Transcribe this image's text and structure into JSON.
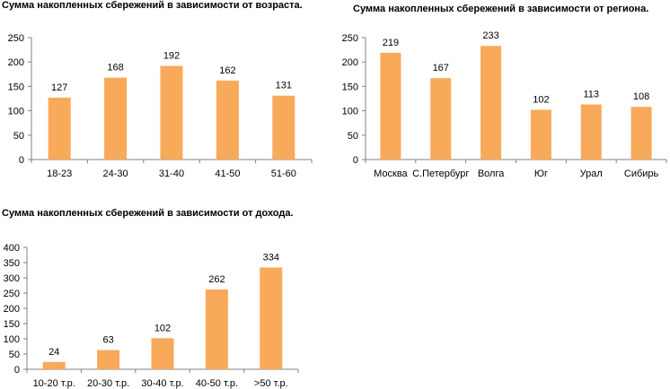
{
  "charts": {
    "age": {
      "title": "Сумма накопленных сбережений в зависимости от возраста."
    },
    "region": {
      "title": "Сумма накопленных сбережений в зависимости от региона."
    },
    "income": {
      "title": "Сумма накопленных  сбережений в зависимости от дохода."
    }
  },
  "chart_data": [
    {
      "id": "age",
      "type": "bar",
      "title": "Сумма накопленных сбережений в зависимости от возраста.",
      "categories": [
        "18-23",
        "24-30",
        "31-40",
        "41-50",
        "51-60"
      ],
      "values": [
        127,
        168,
        192,
        162,
        131
      ],
      "xlabel": "",
      "ylabel": "",
      "ylim": [
        0,
        250
      ],
      "yticks": [
        0,
        50,
        100,
        150,
        200,
        250
      ],
      "grid": false,
      "bar_color": "#f8a95a"
    },
    {
      "id": "region",
      "type": "bar",
      "title": "Сумма накопленных сбережений в зависимости от региона.",
      "categories": [
        "Москва",
        "С.Петербург",
        "Волга",
        "Юг",
        "Урал",
        "Сибирь"
      ],
      "values": [
        219,
        167,
        233,
        102,
        113,
        108
      ],
      "xlabel": "",
      "ylabel": "",
      "ylim": [
        0,
        250
      ],
      "yticks": [
        0,
        50,
        100,
        150,
        200,
        250
      ],
      "grid": false,
      "bar_color": "#f8a95a"
    },
    {
      "id": "income",
      "type": "bar",
      "title": "Сумма накопленных  сбережений в зависимости от дохода.",
      "categories": [
        "10-20  т.р.",
        "20-30 т.р.",
        "30-40 т.р.",
        "40-50 т.р.",
        ">50 т.р."
      ],
      "values": [
        24,
        63,
        102,
        262,
        334
      ],
      "xlabel": "",
      "ylabel": "",
      "ylim": [
        0,
        400
      ],
      "yticks": [
        0,
        50,
        100,
        150,
        200,
        250,
        300,
        350,
        400
      ],
      "grid": false,
      "bar_color": "#f8a95a"
    }
  ]
}
